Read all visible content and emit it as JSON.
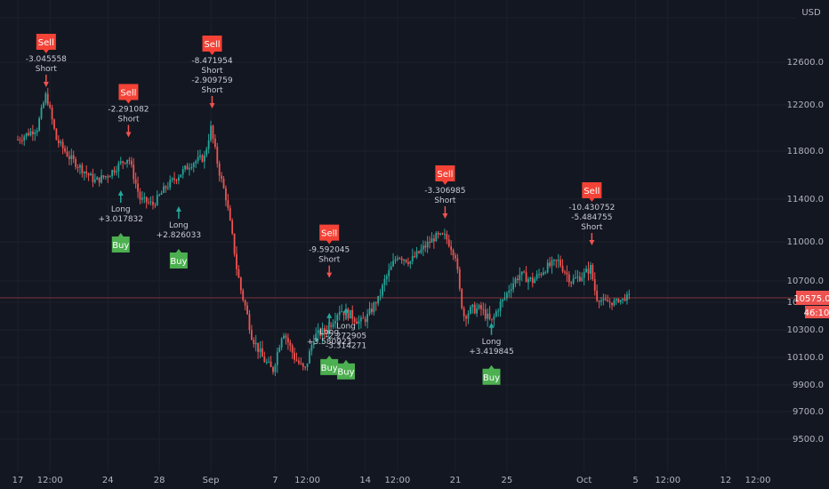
{
  "currency": "USD",
  "colors": {
    "background": "#131722",
    "up": "#26a69a",
    "down": "#ef5350",
    "buy": "#4caf50",
    "sell": "#f44336",
    "grid": "#1c202b",
    "price_line": "#ef5350"
  },
  "chart_data": {
    "type": "candlestick",
    "ylim": [
      9300,
      13000
    ],
    "y_ticks": [
      "9500.0",
      "9700.0",
      "9900.0",
      "10100.0",
      "10300.0",
      "10500.0",
      "10700.0",
      "11000.0",
      "11400.0",
      "11800.0",
      "12200.0",
      "12600.0",
      "13000.0"
    ],
    "y_tick_values": [
      9500,
      9700,
      9900,
      10100,
      10300,
      10500,
      10700,
      11000,
      11400,
      11800,
      12200,
      12600,
      13000
    ],
    "x_ticks": [
      "17",
      "12:00",
      "24",
      "28",
      "Sep",
      "7",
      "12:00",
      "14",
      "12:00",
      "21",
      "25",
      "Oct",
      "5",
      "12:00",
      "12",
      "12:00"
    ],
    "x_tick_days": [
      0,
      2.5,
      7,
      11,
      15,
      20,
      22.5,
      27,
      29.5,
      34,
      38,
      44,
      48,
      50.5,
      55,
      57.5
    ],
    "last_day": 47.5,
    "current_price": "10575.0",
    "countdown": "46:10",
    "price_path": [
      [
        0,
        11900
      ],
      [
        1.5,
        12000
      ],
      [
        2.2,
        12300
      ],
      [
        3,
        11900
      ],
      [
        4,
        11750
      ],
      [
        5,
        11650
      ],
      [
        6,
        11550
      ],
      [
        7,
        11600
      ],
      [
        8,
        11700
      ],
      [
        8.6,
        11750
      ],
      [
        9.5,
        11400
      ],
      [
        10.5,
        11350
      ],
      [
        11.5,
        11500
      ],
      [
        12.5,
        11600
      ],
      [
        13.5,
        11700
      ],
      [
        14.5,
        11750
      ],
      [
        15,
        12000
      ],
      [
        15.6,
        11650
      ],
      [
        16.2,
        11400
      ],
      [
        17,
        10800
      ],
      [
        17.6,
        10500
      ],
      [
        18.2,
        10250
      ],
      [
        19,
        10100
      ],
      [
        19.8,
        10000
      ],
      [
        20.6,
        10300
      ],
      [
        21.5,
        10100
      ],
      [
        22.3,
        10000
      ],
      [
        23,
        10250
      ],
      [
        24,
        10300
      ],
      [
        25,
        10450
      ],
      [
        26,
        10400
      ],
      [
        26.6,
        10350
      ],
      [
        27.2,
        10400
      ],
      [
        27.8,
        10500
      ],
      [
        28.5,
        10700
      ],
      [
        29.5,
        10900
      ],
      [
        30.5,
        10850
      ],
      [
        31.5,
        10950
      ],
      [
        32.5,
        11050
      ],
      [
        33.2,
        11050
      ],
      [
        34,
        10900
      ],
      [
        34.6,
        10400
      ],
      [
        35.3,
        10450
      ],
      [
        36,
        10450
      ],
      [
        36.8,
        10350
      ],
      [
        37.5,
        10500
      ],
      [
        38.2,
        10650
      ],
      [
        39,
        10750
      ],
      [
        40,
        10700
      ],
      [
        41,
        10800
      ],
      [
        42,
        10850
      ],
      [
        43,
        10700
      ],
      [
        44,
        10750
      ],
      [
        44.5,
        10800
      ],
      [
        45,
        10550
      ],
      [
        46,
        10500
      ],
      [
        47,
        10550
      ],
      [
        47.5,
        10575
      ]
    ],
    "signals": [
      {
        "type": "Sell",
        "day": 2.2,
        "value": 12400,
        "labels": [
          "-3.045558",
          "Short"
        ]
      },
      {
        "type": "Sell",
        "day": 8.6,
        "value": 11950,
        "labels": [
          "-2.291082",
          "Short"
        ]
      },
      {
        "type": "Long",
        "day": 8.0,
        "value": 11350,
        "labels": [
          "Long",
          "+3.017832"
        ],
        "buy": true
      },
      {
        "type": "Long",
        "day": 12.5,
        "value": 11200,
        "labels": [
          "Long",
          "+2.826033"
        ],
        "buy": true
      },
      {
        "type": "Sell",
        "day": 15.1,
        "value": 12200,
        "labels": [
          "-8.471954",
          "Short",
          "-2.909759",
          "Short"
        ]
      },
      {
        "type": "Sell",
        "day": 24.2,
        "value": 10750,
        "labels": [
          "-9.592045",
          "Short"
        ]
      },
      {
        "type": "Long",
        "day": 24.2,
        "value": 10320,
        "labels": [
          "Long",
          "+3.580923"
        ],
        "buy": true
      },
      {
        "type": "Long",
        "day": 25.5,
        "value": 10360,
        "labels": [
          "Long",
          "-2.272905",
          "-3.314271"
        ],
        "buy": true
      },
      {
        "type": "Sell",
        "day": 33.2,
        "value": 11250,
        "labels": [
          "-3.306985",
          "Short"
        ]
      },
      {
        "type": "Long",
        "day": 36.8,
        "value": 10250,
        "labels": [
          "Long",
          "+3.419845"
        ],
        "buy": true
      },
      {
        "type": "Sell",
        "day": 44.6,
        "value": 11000,
        "labels": [
          "-10.430752",
          "-5.484755",
          "Short"
        ]
      }
    ]
  }
}
